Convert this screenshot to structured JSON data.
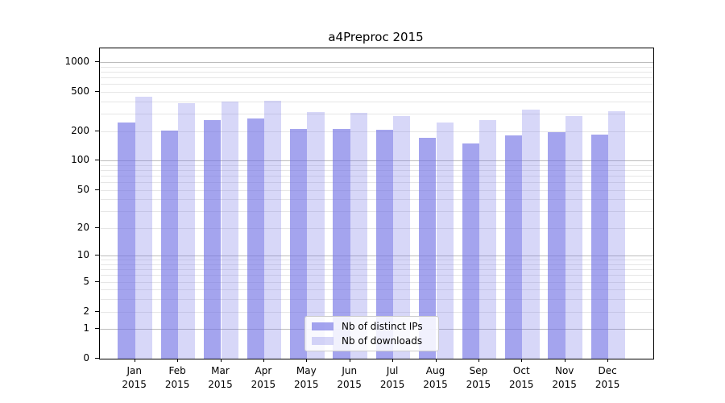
{
  "chart_data": {
    "type": "bar",
    "title": "a4Preproc 2015",
    "categories": [
      "Jan",
      "Feb",
      "Mar",
      "Apr",
      "May",
      "Jun",
      "Jul",
      "Aug",
      "Sep",
      "Oct",
      "Nov",
      "Dec"
    ],
    "category_year": "2015",
    "series": [
      {
        "name": "Nb of distinct IPs",
        "color_rgba": "rgba(113,113,229,0.64)",
        "values": [
          242,
          203,
          260,
          270,
          209,
          210,
          206,
          169,
          149,
          182,
          196,
          185
        ]
      },
      {
        "name": "Nb of downloads",
        "color_rgba": "rgba(113,113,229,0.28)",
        "values": [
          447,
          384,
          399,
          404,
          311,
          308,
          286,
          245,
          256,
          331,
          283,
          317
        ]
      }
    ],
    "y_axis": {
      "scale": "symlog-log1p",
      "tick_values": [
        0,
        1,
        2,
        5,
        10,
        20,
        50,
        100,
        200,
        500,
        1000
      ],
      "tick_labels": [
        "0",
        "1",
        "2",
        "5",
        "10",
        "20",
        "50",
        "100",
        "200",
        "500",
        "1000"
      ],
      "major_grid_values": [
        1,
        10,
        100,
        1000
      ],
      "minor_grid_multiples": [
        2,
        3,
        4,
        5,
        6,
        7,
        8,
        9
      ],
      "ylim_top_value": 1000
    },
    "legend_position": "lower center",
    "grid": true,
    "colors": {
      "grid_major": "#bdbdbd",
      "grid_minor": "#e6e6e6",
      "spine": "#000000",
      "background": "#ffffff"
    }
  }
}
